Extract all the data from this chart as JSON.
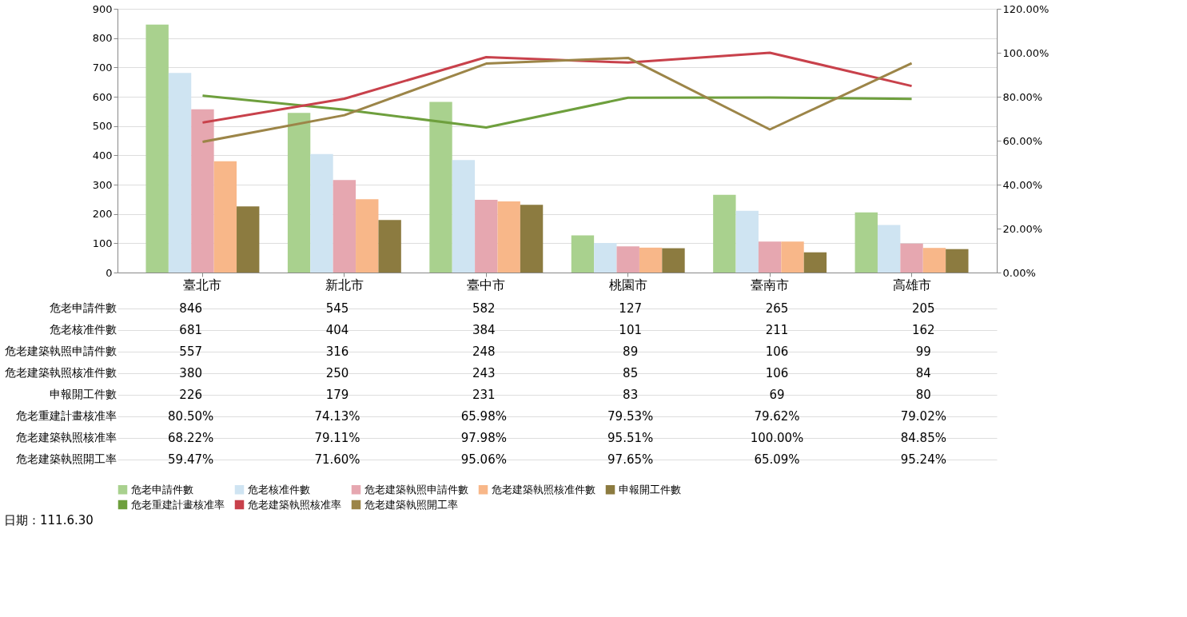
{
  "chart_data": {
    "type": "bar",
    "categories": [
      "臺北市",
      "新北市",
      "臺中市",
      "桃園市",
      "臺南市",
      "高雄市"
    ],
    "series": [
      {
        "name": "危老申請件數",
        "color": "#a9d18e",
        "values": [
          846,
          545,
          582,
          127,
          265,
          205
        ],
        "value_labels": [
          "846",
          "545",
          "582",
          "127",
          "265",
          "205"
        ]
      },
      {
        "name": "危老核准件數",
        "color": "#cfe4f2",
        "values": [
          681,
          404,
          384,
          101,
          211,
          162
        ],
        "value_labels": [
          "681",
          "404",
          "384",
          "101",
          "211",
          "162"
        ]
      },
      {
        "name": "危老建築執照申請件數",
        "color": "#e6a7b0",
        "values": [
          557,
          316,
          248,
          89,
          106,
          99
        ],
        "value_labels": [
          "557",
          "316",
          "248",
          "89",
          "106",
          "99"
        ]
      },
      {
        "name": "危老建築執照核准件數",
        "color": "#f8b789",
        "values": [
          380,
          250,
          243,
          85,
          106,
          84
        ],
        "value_labels": [
          "380",
          "250",
          "243",
          "85",
          "106",
          "84"
        ]
      },
      {
        "name": "申報開工件數",
        "color": "#8c7b40",
        "values": [
          226,
          179,
          231,
          83,
          69,
          80
        ],
        "value_labels": [
          "226",
          "179",
          "231",
          "83",
          "69",
          "80"
        ]
      },
      {
        "name": "危老重建計畫核准率",
        "color": "#6e9f3d",
        "type": "line",
        "axis": "y2",
        "values": [
          80.5,
          74.13,
          65.98,
          79.53,
          79.62,
          79.02
        ],
        "value_labels": [
          "80.50%",
          "74.13%",
          "65.98%",
          "79.53%",
          "79.62%",
          "79.02%"
        ]
      },
      {
        "name": "危老建築執照核准率",
        "color": "#c8414b",
        "type": "line",
        "axis": "y2",
        "values": [
          68.22,
          79.11,
          97.98,
          95.51,
          100.0,
          84.85
        ],
        "value_labels": [
          "68.22%",
          "79.11%",
          "97.98%",
          "95.51%",
          "100.00%",
          "84.85%"
        ]
      },
      {
        "name": "危老建築執照開工率",
        "color": "#9c8548",
        "type": "line",
        "axis": "y2",
        "values": [
          59.47,
          71.6,
          95.06,
          97.65,
          65.09,
          95.24
        ],
        "value_labels": [
          "59.47%",
          "71.60%",
          "95.06%",
          "97.65%",
          "65.09%",
          "95.24%"
        ]
      }
    ],
    "ylim": [
      0,
      900
    ],
    "yticks": [
      0,
      100,
      200,
      300,
      400,
      500,
      600,
      700,
      800,
      900
    ],
    "y2lim": [
      0,
      120
    ],
    "y2ticks": [
      {
        "value": 0,
        "label": "0.00%"
      },
      {
        "value": 20,
        "label": "20.00%"
      },
      {
        "value": 40,
        "label": "40.00%"
      },
      {
        "value": 60,
        "label": "60.00%"
      },
      {
        "value": 80,
        "label": "80.00%"
      },
      {
        "value": 100,
        "label": "100.00%"
      },
      {
        "value": 120,
        "label": "120.00%"
      }
    ],
    "grid": "y",
    "legend": "bottom",
    "marker": "none",
    "line_style": "solid",
    "annotations": [
      "日期：111.6.30"
    ]
  }
}
